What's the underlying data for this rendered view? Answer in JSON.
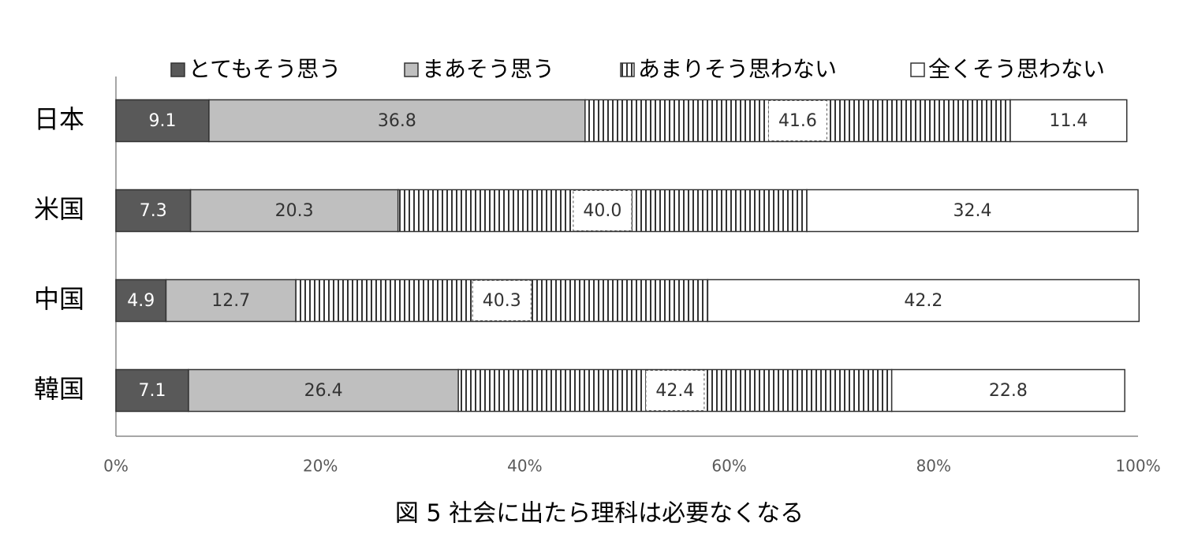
{
  "chart_data": {
    "type": "stacked-bar-horizontal",
    "title": "図 5  社会に出たら理科は必要なくなる",
    "categories": [
      "日本",
      "米国",
      "中国",
      "韓国"
    ],
    "series": [
      {
        "name": "とてもそう思う",
        "color": "#595959",
        "values": [
          9.1,
          7.3,
          4.9,
          7.1
        ]
      },
      {
        "name": "まあそう思う",
        "color": "#bfbfbf",
        "values": [
          36.8,
          20.3,
          12.7,
          26.4
        ]
      },
      {
        "name": "あまりそう思わない",
        "color": "#ffffff",
        "pattern": "vertical-lines",
        "values": [
          41.6,
          40.0,
          40.3,
          42.4
        ],
        "value_labels": [
          "41.6",
          "40.0",
          "40.3",
          "42.4"
        ]
      },
      {
        "name": "全くそう思わない",
        "color": "#ffffff",
        "values": [
          11.4,
          32.4,
          42.2,
          22.8
        ]
      }
    ],
    "xlim": [
      0,
      100
    ],
    "xticks": [
      {
        "value": 0,
        "label": "0%"
      },
      {
        "value": 20,
        "label": "20%"
      },
      {
        "value": 40,
        "label": "40%"
      },
      {
        "value": 60,
        "label": "60%"
      },
      {
        "value": 80,
        "label": "80%"
      },
      {
        "value": 100,
        "label": "100%"
      }
    ],
    "legend": "top"
  }
}
